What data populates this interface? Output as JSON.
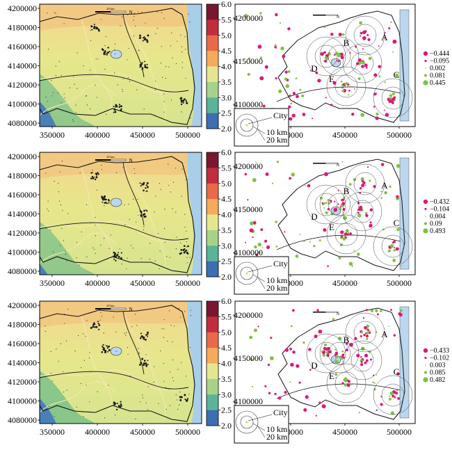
{
  "left_axes": {
    "y_ticks": [
      "4200000",
      "4180000",
      "4160000",
      "4140000",
      "4120000",
      "4100000",
      "4080000"
    ],
    "x_ticks": [
      "350000",
      "400000",
      "450000",
      "500000"
    ]
  },
  "right_axes": {
    "y_ticks": [
      "4200000",
      "4150000",
      "4100000"
    ],
    "x_ticks": [
      "400000",
      "450000",
      "500000"
    ]
  },
  "colorbar": {
    "labels": [
      "6.0",
      "5.5",
      "5.0",
      "4.5",
      "4.0",
      "3.5",
      "3.0",
      "2.5",
      "2.0"
    ],
    "colors": [
      "#7b1630",
      "#c22d3e",
      "#ea6a48",
      "#f7aa5a",
      "#e5e78f",
      "#a7d389",
      "#5ab49a",
      "#3c6fb2",
      "#4a2f8f"
    ]
  },
  "scale_bar": {
    "label": "20 km",
    "north": "N"
  },
  "area_labels": [
    "A",
    "B",
    "C",
    "D",
    "E"
  ],
  "inset": {
    "city": "City",
    "r1": "10 km",
    "r2": "20 km"
  },
  "panels": [
    {
      "legend": [
        "−0.444",
        "−0.095",
        "0.002",
        "0.081",
        "0.445"
      ]
    },
    {
      "legend": [
        "−0.432",
        "−0.104",
        "0.004",
        "0.09",
        "0.493"
      ]
    },
    {
      "legend": [
        "−0.433",
        "−0.102",
        "0.003",
        "0.085",
        "0.482"
      ]
    }
  ],
  "point_colors": {
    "negative": "#e0177b",
    "positive": "#7cc242",
    "lake": "#bcd6ee"
  }
}
